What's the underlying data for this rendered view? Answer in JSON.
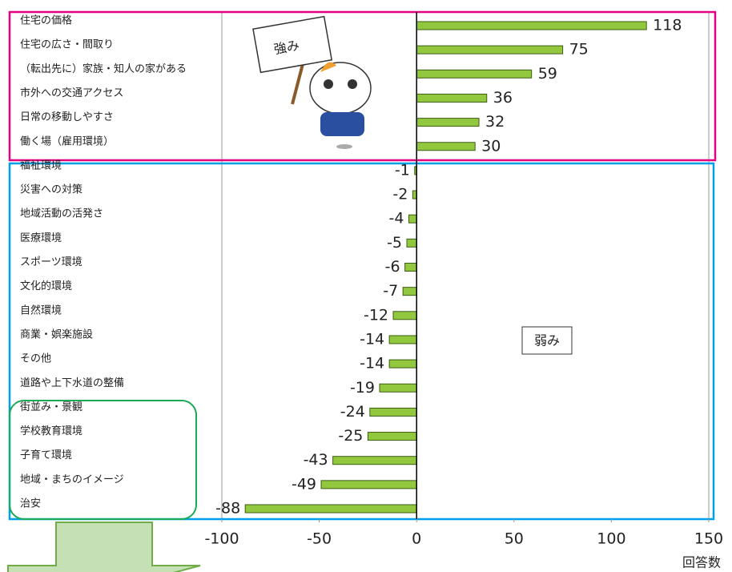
{
  "chart_data": {
    "type": "bar",
    "orientation": "horizontal",
    "categories": [
      "住宅の価格",
      "住宅の広さ・間取り",
      "（転出先に）家族・知人の家がある",
      "市外への交通アクセス",
      "日常の移動しやすさ",
      "働く場（雇用環境）",
      "福祉環境",
      "災害への対策",
      "地域活動の活発さ",
      "医療環境",
      "スポーツ環境",
      "文化的環境",
      "自然環境",
      "商業・娯楽施設",
      "その他",
      "道路や上下水道の整備",
      "街並み・景観",
      "学校教育環境",
      "子育て環境",
      "地域・まちのイメージ",
      "治安"
    ],
    "values": [
      118,
      75,
      59,
      36,
      32,
      30,
      -1,
      -2,
      -4,
      -5,
      -6,
      -7,
      -12,
      -14,
      -14,
      -19,
      -24,
      -25,
      -43,
      -49,
      -88
    ],
    "color": "#92c83e",
    "xlim": [
      -100,
      150
    ],
    "xticks": [
      -100,
      -50,
      0,
      50,
      100,
      150
    ],
    "x_label": "回答数",
    "annotations": [
      "強み",
      "弱み"
    ]
  }
}
